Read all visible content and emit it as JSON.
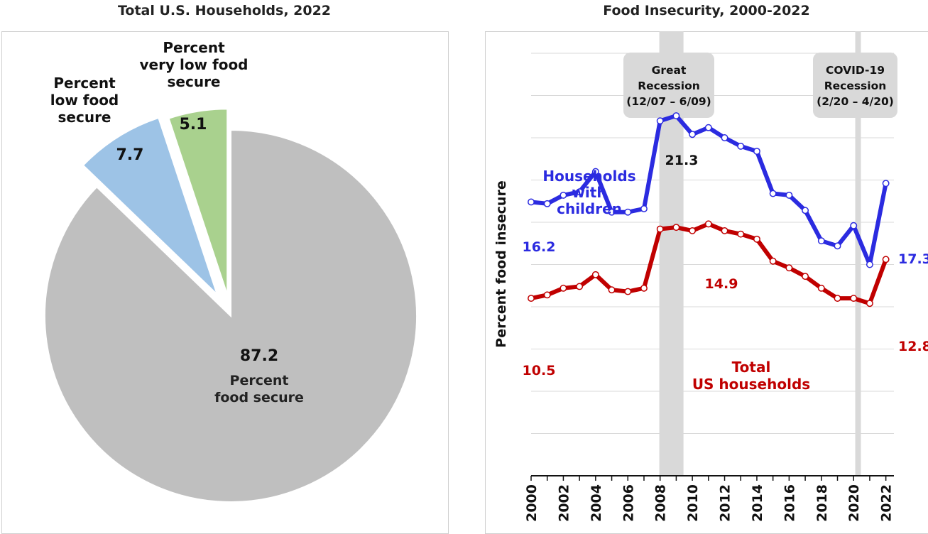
{
  "chart_data": [
    {
      "type": "pie",
      "title": "Total U.S. Households, 2022",
      "slices": [
        {
          "value": 87.2,
          "value_label": "87.2",
          "label_lines": [
            "Percent",
            "food secure"
          ],
          "color": "#bfbfbf",
          "exploded": false
        },
        {
          "value": 7.7,
          "value_label": "7.7",
          "label_lines": [
            "Percent",
            "low food",
            "secure"
          ],
          "color": "#9dc3e6",
          "exploded": true
        },
        {
          "value": 5.1,
          "value_label": "5.1",
          "label_lines": [
            "Percent",
            "very low food",
            "secure"
          ],
          "color": "#a9d18e",
          "exploded": true
        }
      ]
    },
    {
      "type": "line",
      "title": "Food Insecurity, 2000-2022",
      "ylabel": "Percent food insecure",
      "ylim": [
        0,
        25
      ],
      "x": [
        2000,
        2001,
        2002,
        2003,
        2004,
        2005,
        2006,
        2007,
        2008,
        2009,
        2010,
        2011,
        2012,
        2013,
        2014,
        2015,
        2016,
        2017,
        2018,
        2019,
        2020,
        2021,
        2022
      ],
      "xtick_labels": [
        "2000",
        "2002",
        "2004",
        "2006",
        "2008",
        "2010",
        "2012",
        "2014",
        "2016",
        "2018",
        "2020",
        "2022"
      ],
      "series": [
        {
          "name": "Households with children",
          "label_lines": [
            "Households",
            "with",
            "children"
          ],
          "color": "#2b2be0",
          "values": [
            16.2,
            16.1,
            16.6,
            16.8,
            18.0,
            15.6,
            15.6,
            15.8,
            21.0,
            21.3,
            20.2,
            20.6,
            20.0,
            19.5,
            19.2,
            16.7,
            16.6,
            15.7,
            13.9,
            13.6,
            14.8,
            12.5,
            17.3
          ],
          "start_label": "16.2",
          "end_label": "17.3",
          "peak_label": "21.3"
        },
        {
          "name": "Total US households",
          "label_lines": [
            "Total",
            "US households"
          ],
          "color": "#c00000",
          "values": [
            10.5,
            10.7,
            11.1,
            11.2,
            11.9,
            11.0,
            10.9,
            11.1,
            14.6,
            14.7,
            14.5,
            14.9,
            14.5,
            14.3,
            14.0,
            12.7,
            12.3,
            11.8,
            11.1,
            10.5,
            10.5,
            10.2,
            12.8
          ],
          "start_label": "10.5",
          "end_label": "12.8",
          "peak_label": "14.9"
        }
      ],
      "recessions": [
        {
          "label_lines": [
            "Great",
            "Recession",
            "(12/07 – 6/09)"
          ],
          "start": 2007.95,
          "end": 2009.45
        },
        {
          "label_lines": [
            "COVID-19",
            "Recession",
            "(2/20 – 4/20)"
          ],
          "start": 2020.1,
          "end": 2020.35
        }
      ],
      "recession_color": "#d9d9d9",
      "grid": true
    }
  ]
}
